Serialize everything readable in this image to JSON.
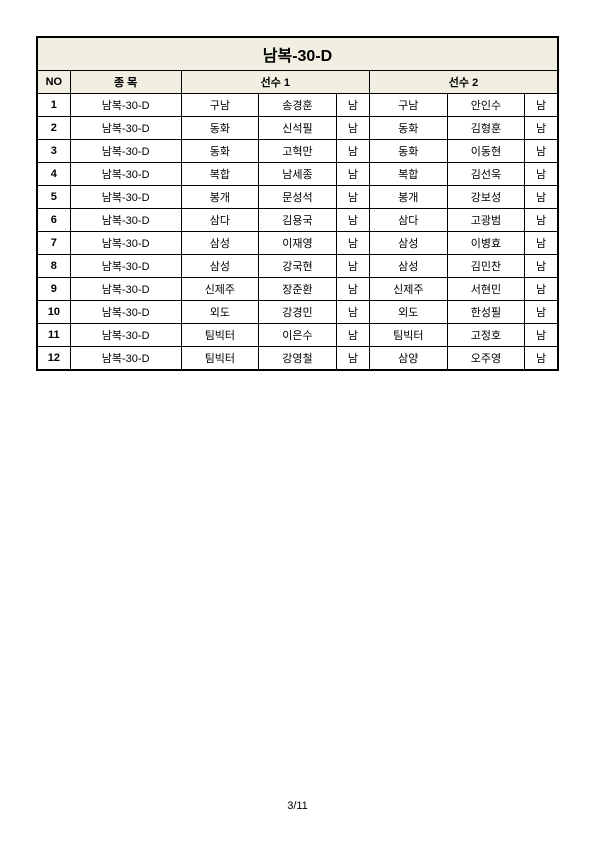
{
  "title": "남복-30-D",
  "columns": {
    "no": "NO",
    "category": "종  목",
    "player1": "선수 1",
    "player2": "선수 2"
  },
  "rows": [
    {
      "no": "1",
      "cat": "남복-30-D",
      "p1team": "구남",
      "p1name": "송경훈",
      "p1g": "남",
      "p2team": "구남",
      "p2name": "안인수",
      "p2g": "남"
    },
    {
      "no": "2",
      "cat": "남복-30-D",
      "p1team": "동화",
      "p1name": "신석필",
      "p1g": "남",
      "p2team": "동화",
      "p2name": "김형훈",
      "p2g": "남"
    },
    {
      "no": "3",
      "cat": "남복-30-D",
      "p1team": "동화",
      "p1name": "고혁만",
      "p1g": "남",
      "p2team": "동화",
      "p2name": "이동현",
      "p2g": "남"
    },
    {
      "no": "4",
      "cat": "남복-30-D",
      "p1team": "복합",
      "p1name": "남세종",
      "p1g": "남",
      "p2team": "복합",
      "p2name": "김선욱",
      "p2g": "남"
    },
    {
      "no": "5",
      "cat": "남복-30-D",
      "p1team": "봉개",
      "p1name": "문성석",
      "p1g": "남",
      "p2team": "봉개",
      "p2name": "강보성",
      "p2g": "남"
    },
    {
      "no": "6",
      "cat": "남복-30-D",
      "p1team": "삼다",
      "p1name": "김용국",
      "p1g": "남",
      "p2team": "삼다",
      "p2name": "고광범",
      "p2g": "남"
    },
    {
      "no": "7",
      "cat": "남복-30-D",
      "p1team": "삼성",
      "p1name": "이재영",
      "p1g": "남",
      "p2team": "삼성",
      "p2name": "이병효",
      "p2g": "남"
    },
    {
      "no": "8",
      "cat": "남복-30-D",
      "p1team": "삼성",
      "p1name": "강국현",
      "p1g": "남",
      "p2team": "삼성",
      "p2name": "김민찬",
      "p2g": "남"
    },
    {
      "no": "9",
      "cat": "남복-30-D",
      "p1team": "신제주",
      "p1name": "장준환",
      "p1g": "남",
      "p2team": "신제주",
      "p2name": "서현민",
      "p2g": "남"
    },
    {
      "no": "10",
      "cat": "남복-30-D",
      "p1team": "외도",
      "p1name": "강경민",
      "p1g": "남",
      "p2team": "외도",
      "p2name": "한성필",
      "p2g": "남"
    },
    {
      "no": "11",
      "cat": "남복-30-D",
      "p1team": "팀빅터",
      "p1name": "이은수",
      "p1g": "남",
      "p2team": "팀빅터",
      "p2name": "고정호",
      "p2g": "남"
    },
    {
      "no": "12",
      "cat": "남복-30-D",
      "p1team": "팀빅터",
      "p1name": "강영철",
      "p1g": "남",
      "p2team": "삼양",
      "p2name": "오주영",
      "p2g": "남"
    }
  ],
  "footer": "3/11",
  "style": {
    "header_bg": "#f0efe2",
    "border_color": "#000000",
    "page_bg": "#ffffff"
  }
}
